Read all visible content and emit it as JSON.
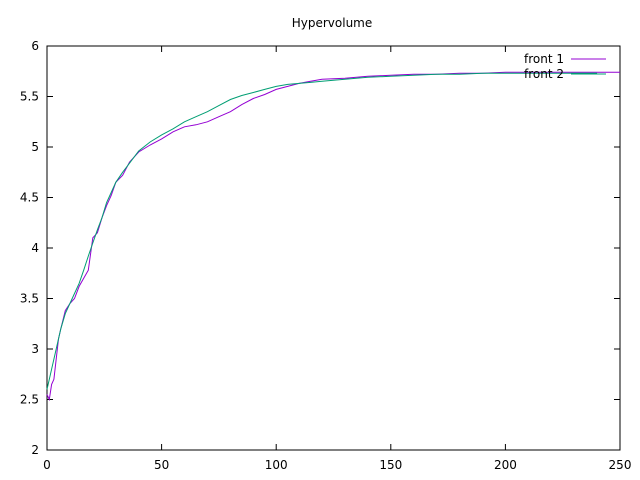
{
  "chart_data": {
    "type": "line",
    "title": "Hypervolume",
    "xlabel": "",
    "ylabel": "",
    "xlim": [
      0,
      250
    ],
    "ylim": [
      2,
      6
    ],
    "x_ticks": [
      0,
      50,
      100,
      150,
      200,
      250
    ],
    "y_ticks": [
      2,
      2.5,
      3,
      3.5,
      4,
      4.5,
      5,
      5.5,
      6
    ],
    "x_tick_labels": [
      "0",
      "50",
      "100",
      "150",
      "200",
      "250"
    ],
    "y_tick_labels": [
      "2",
      "2.5",
      "3",
      "3.5",
      "4",
      "4.5",
      "5",
      "5.5",
      "6"
    ],
    "grid": false,
    "legend_position": "top-right",
    "series": [
      {
        "name": "front 1",
        "color": "#9400d3",
        "x": [
          0,
          1,
          2,
          3,
          4,
          5,
          6,
          8,
          10,
          12,
          14,
          16,
          18,
          20,
          22,
          24,
          26,
          28,
          30,
          33,
          36,
          40,
          45,
          50,
          55,
          60,
          65,
          70,
          75,
          80,
          85,
          90,
          95,
          100,
          105,
          110,
          115,
          120,
          130,
          140,
          150,
          160,
          170,
          180,
          190,
          200,
          210,
          220,
          230,
          240,
          250
        ],
        "y": [
          2.55,
          2.5,
          2.65,
          2.7,
          2.9,
          3.1,
          3.2,
          3.38,
          3.45,
          3.5,
          3.62,
          3.7,
          3.78,
          4.1,
          4.15,
          4.3,
          4.42,
          4.52,
          4.65,
          4.72,
          4.85,
          4.95,
          5.02,
          5.08,
          5.15,
          5.2,
          5.22,
          5.25,
          5.3,
          5.35,
          5.42,
          5.48,
          5.52,
          5.57,
          5.6,
          5.63,
          5.65,
          5.67,
          5.68,
          5.7,
          5.71,
          5.72,
          5.72,
          5.73,
          5.73,
          5.74,
          5.74,
          5.74,
          5.74,
          5.74,
          5.74
        ]
      },
      {
        "name": "front 2",
        "color": "#009e73",
        "x": [
          0,
          1,
          2,
          3,
          4,
          5,
          6,
          8,
          10,
          12,
          14,
          16,
          18,
          20,
          22,
          24,
          26,
          28,
          30,
          33,
          36,
          40,
          45,
          50,
          55,
          60,
          65,
          70,
          75,
          80,
          85,
          90,
          95,
          100,
          105,
          110,
          115,
          120,
          130,
          140,
          150,
          160,
          170,
          180,
          190,
          200,
          210,
          220,
          230,
          240
        ],
        "y": [
          2.6,
          2.7,
          2.8,
          2.9,
          3.0,
          3.1,
          3.2,
          3.35,
          3.45,
          3.55,
          3.65,
          3.78,
          3.92,
          4.05,
          4.18,
          4.3,
          4.45,
          4.55,
          4.65,
          4.75,
          4.84,
          4.96,
          5.05,
          5.12,
          5.18,
          5.25,
          5.3,
          5.35,
          5.41,
          5.47,
          5.51,
          5.54,
          5.57,
          5.6,
          5.62,
          5.63,
          5.64,
          5.65,
          5.67,
          5.69,
          5.7,
          5.71,
          5.72,
          5.72,
          5.73,
          5.73,
          5.73,
          5.73,
          5.73,
          5.73
        ]
      }
    ]
  }
}
